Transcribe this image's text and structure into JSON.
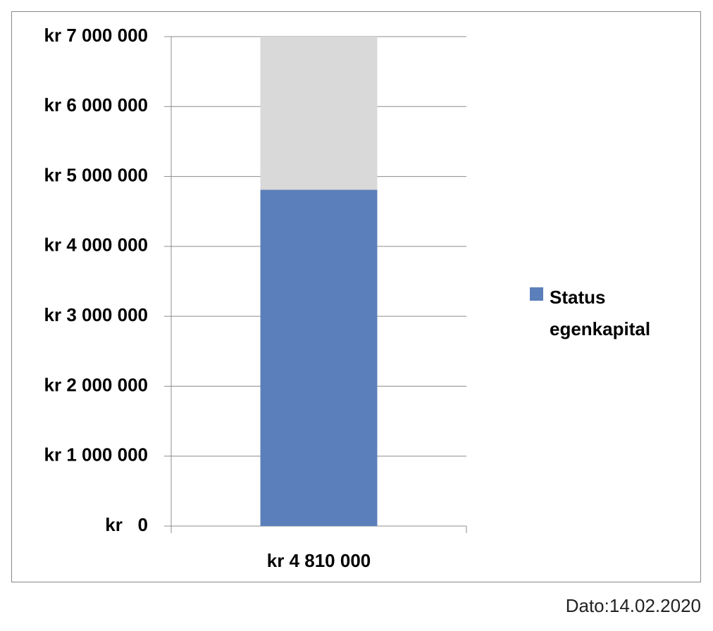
{
  "chart_data": {
    "type": "stacked_bar",
    "categories": [
      "kr 4 810 000"
    ],
    "series": [
      {
        "name": "Status egenkapital",
        "color": "#5b7fba",
        "values": [
          4810000
        ]
      },
      {
        "color": "#d9d9d9",
        "values": [
          2190000
        ]
      }
    ],
    "ylim": [
      0,
      7000000
    ],
    "yticks": [
      {
        "value": 0,
        "label": "kr   0"
      },
      {
        "value": 1000000,
        "label": "kr 1 000 000"
      },
      {
        "value": 2000000,
        "label": "kr 2 000 000"
      },
      {
        "value": 3000000,
        "label": "kr 3 000 000"
      },
      {
        "value": 4000000,
        "label": "kr 4 000 000"
      },
      {
        "value": 5000000,
        "label": "kr 5 000 000"
      },
      {
        "value": 6000000,
        "label": "kr 6 000 000"
      },
      {
        "value": 7000000,
        "label": "kr 7 000 000"
      }
    ],
    "grid": true,
    "legend": "right",
    "annotation": "Dato:14.02.2020"
  }
}
